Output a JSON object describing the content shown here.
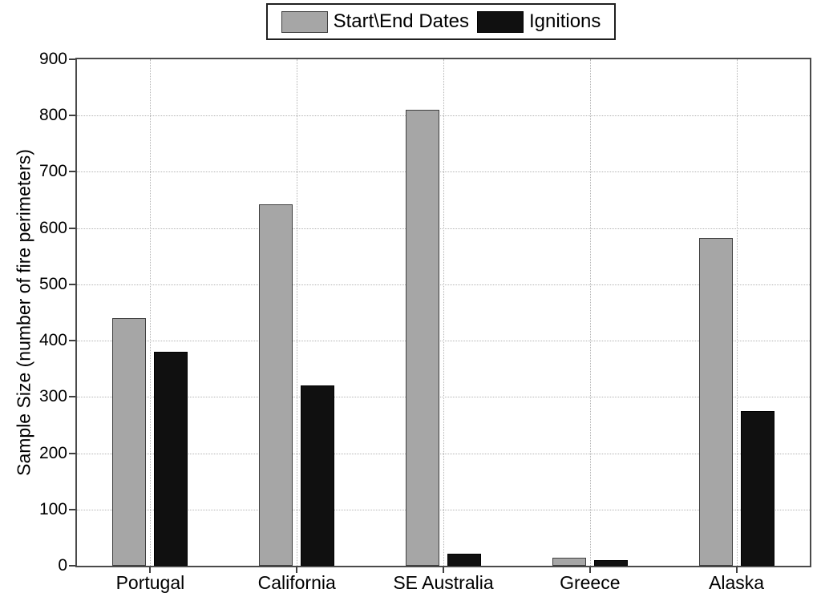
{
  "chart_data": {
    "type": "bar",
    "title": "",
    "categories": [
      "Portugal",
      "California",
      "SE Australia",
      "Greece",
      "Alaska"
    ],
    "series": [
      {
        "name": "Start\\End Dates",
        "color": "#a6a6a6",
        "values": [
          440,
          642,
          810,
          14,
          583
        ]
      },
      {
        "name": "Ignitions",
        "color": "#101010",
        "values": [
          380,
          320,
          22,
          10,
          275
        ]
      }
    ],
    "xlabel": "",
    "ylabel": "Sample Size (number of fire perimeters)",
    "ylim": [
      0,
      900
    ],
    "yticks": [
      0,
      100,
      200,
      300,
      400,
      500,
      600,
      700,
      800,
      900
    ],
    "grid": true,
    "legend_position": "top-center"
  }
}
